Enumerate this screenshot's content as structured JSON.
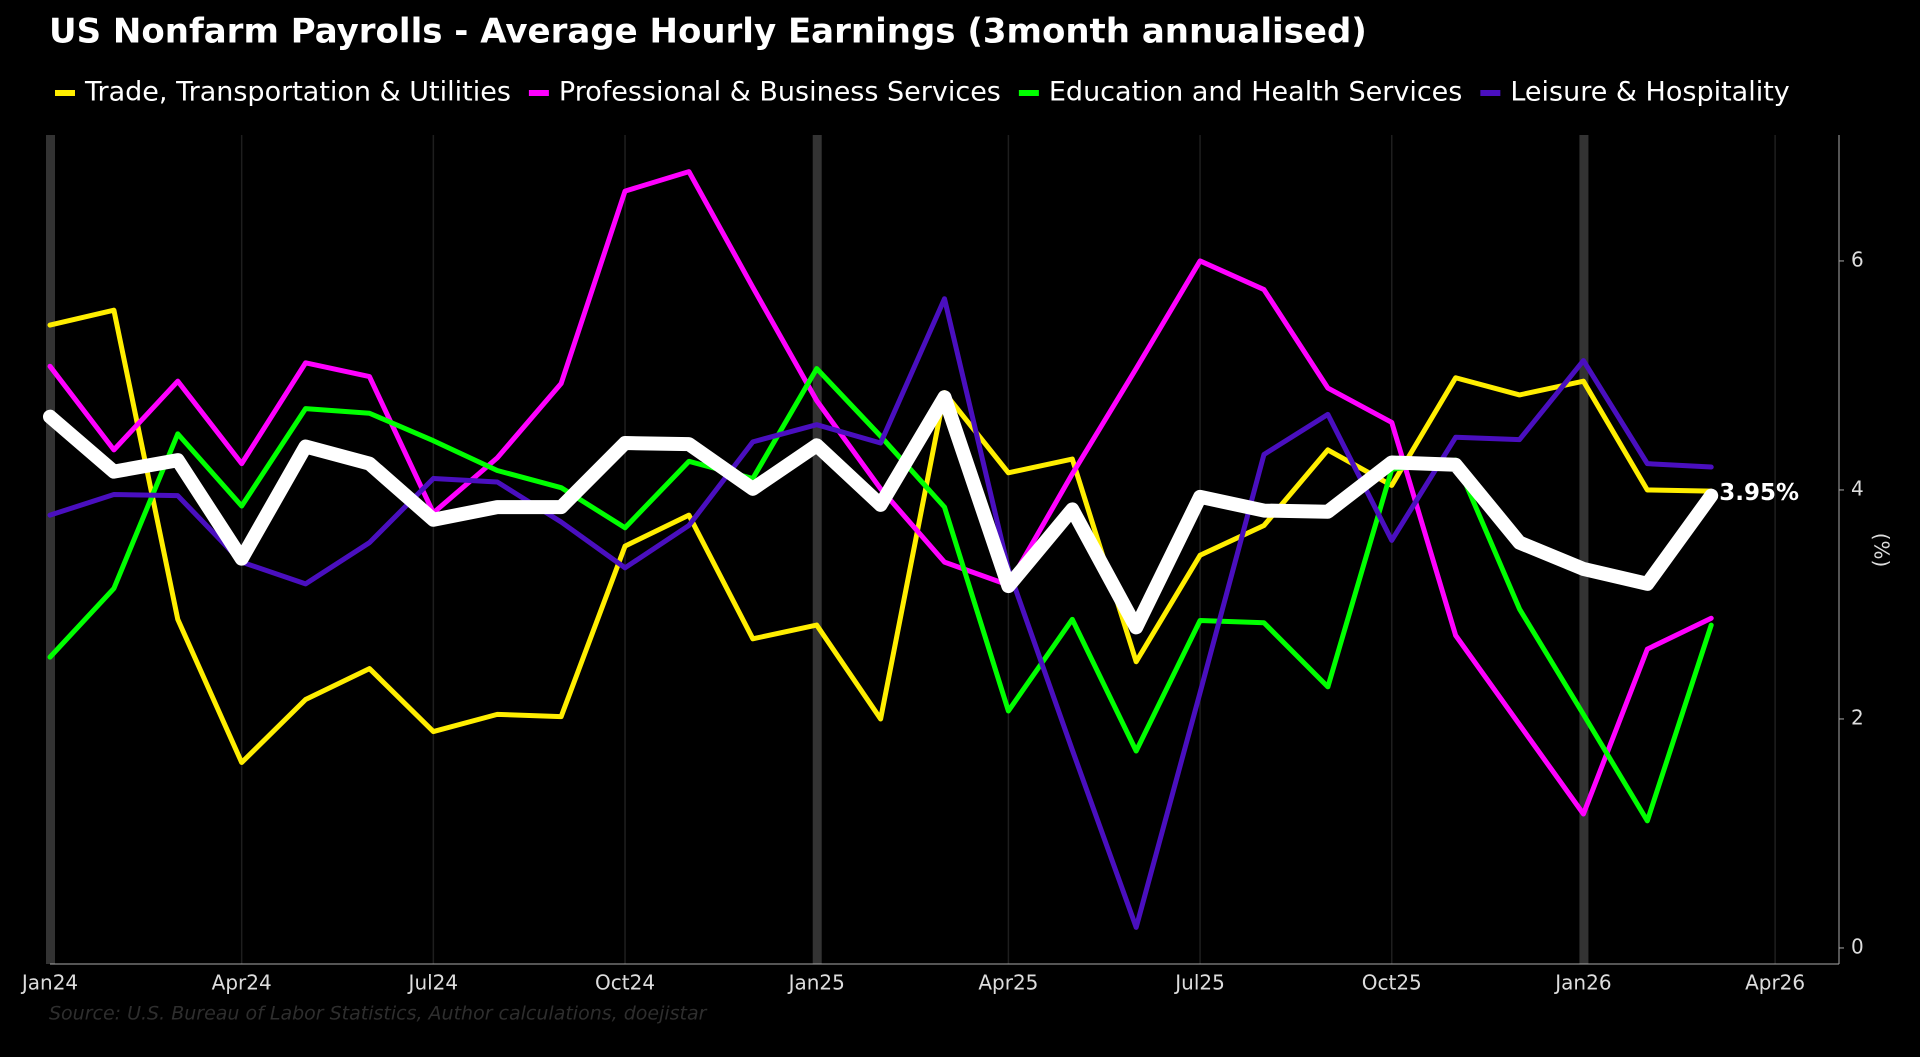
{
  "chart_data": {
    "type": "line",
    "title": "US Nonfarm Payrolls - Average Hourly Earnings (3month annualised)",
    "y_label": "(%)",
    "source": "Source: U.S. Bureau of Labor Statistics, Author calculations, doejistar",
    "x": [
      "2024-01",
      "2024-02",
      "2024-03",
      "2024-04",
      "2024-05",
      "2024-06",
      "2024-07",
      "2024-08",
      "2024-09",
      "2024-10",
      "2024-11",
      "2024-12",
      "2025-01",
      "2025-02",
      "2025-03",
      "2025-04",
      "2025-05",
      "2025-06",
      "2025-07",
      "2025-08",
      "2025-09",
      "2025-10",
      "2025-11",
      "2025-12",
      "2026-01",
      "2026-02",
      "2026-03"
    ],
    "xlim": [
      "2024-01",
      "2026-05"
    ],
    "xticks": [
      {
        "value": "2024-01",
        "label": "Jan24"
      },
      {
        "value": "2024-04",
        "label": "Apr24"
      },
      {
        "value": "2024-07",
        "label": "Jul24"
      },
      {
        "value": "2024-10",
        "label": "Oct24"
      },
      {
        "value": "2025-01",
        "label": "Jan25"
      },
      {
        "value": "2025-04",
        "label": "Apr25"
      },
      {
        "value": "2025-07",
        "label": "Jul25"
      },
      {
        "value": "2025-10",
        "label": "Oct25"
      },
      {
        "value": "2026-01",
        "label": "Jan26"
      },
      {
        "value": "2026-04",
        "label": "Apr26"
      }
    ],
    "ylim": [
      -0.14,
      7.1
    ],
    "yticks": [
      0,
      2,
      4,
      6
    ],
    "grid": true,
    "series": [
      {
        "name": "Trade, Transportation & Utilities",
        "color": "#ffee00",
        "values": [
          5.44,
          5.57,
          2.87,
          1.62,
          2.17,
          2.44,
          1.89,
          2.04,
          2.02,
          3.51,
          3.78,
          2.7,
          2.82,
          2.0,
          4.85,
          4.15,
          4.27,
          2.5,
          3.43,
          3.69,
          4.35,
          4.04,
          4.98,
          4.83,
          4.95,
          4.0,
          3.99
        ]
      },
      {
        "name": "Professional & Business Services",
        "color": "#ff00ff",
        "values": [
          5.08,
          4.35,
          4.95,
          4.23,
          5.11,
          4.99,
          3.8,
          4.28,
          4.93,
          6.61,
          6.78,
          5.77,
          4.78,
          4.01,
          3.37,
          3.17,
          4.14,
          5.06,
          6.0,
          5.75,
          4.89,
          4.59,
          2.73,
          1.95,
          1.17,
          2.61,
          2.88
        ]
      },
      {
        "name": "Education and Health Services",
        "color": "#00ff00",
        "values": [
          2.54,
          3.14,
          4.49,
          3.86,
          4.71,
          4.67,
          4.43,
          4.17,
          4.02,
          3.67,
          4.25,
          4.1,
          5.06,
          4.47,
          3.85,
          2.07,
          2.87,
          1.72,
          2.86,
          2.84,
          2.28,
          4.18,
          4.26,
          2.96,
          2.04,
          1.11,
          2.82
        ]
      },
      {
        "name": "Leisure & Hospitality",
        "color": "#4a0fbf",
        "values": [
          3.78,
          3.96,
          3.95,
          3.37,
          3.18,
          3.54,
          4.1,
          4.07,
          3.72,
          3.32,
          3.69,
          4.42,
          4.57,
          4.41,
          5.67,
          3.31,
          1.73,
          0.18,
          2.23,
          4.31,
          4.66,
          3.56,
          4.46,
          4.44,
          5.13,
          4.23,
          4.2
        ]
      },
      {
        "color": "#ffffff",
        "values": [
          4.64,
          4.16,
          4.26,
          3.4,
          4.38,
          4.23,
          3.74,
          3.85,
          3.85,
          4.41,
          4.4,
          4.01,
          4.39,
          3.87,
          4.81,
          3.16,
          3.83,
          2.8,
          3.94,
          3.82,
          3.81,
          4.24,
          4.22,
          3.54,
          3.31,
          3.18,
          3.95
        ],
        "value_labels": [
          null,
          null,
          null,
          null,
          null,
          null,
          null,
          null,
          null,
          null,
          null,
          null,
          null,
          null,
          null,
          null,
          null,
          null,
          null,
          null,
          null,
          null,
          null,
          null,
          null,
          null,
          "3.95%"
        ]
      }
    ]
  }
}
